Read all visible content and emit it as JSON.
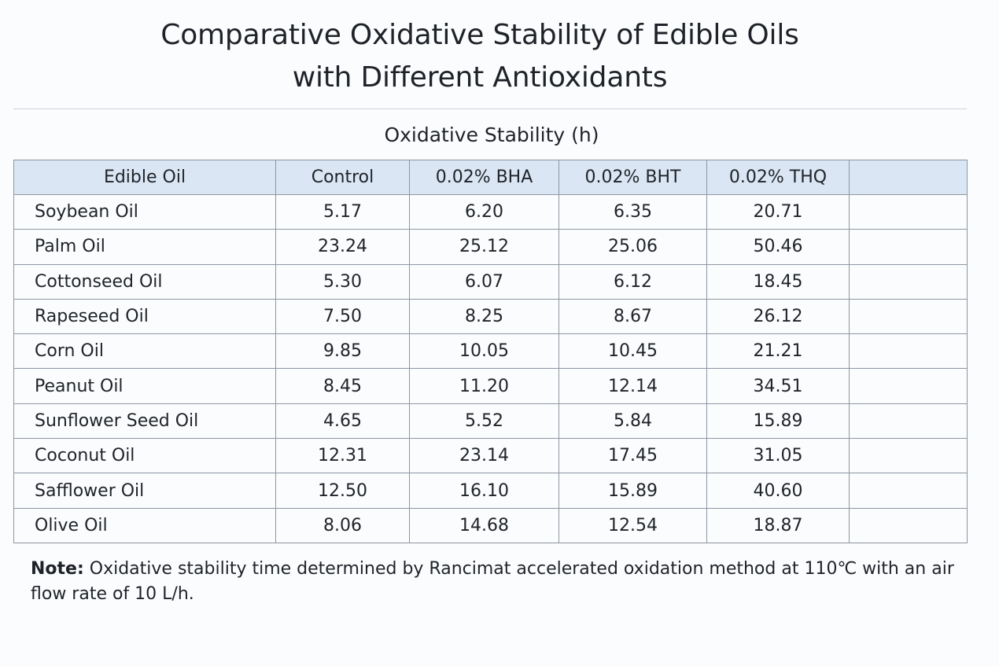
{
  "title_line1": "Comparative Oxidative Stability of Edible Oils",
  "title_line2": "with Different Antioxidants",
  "subtitle": "Oxidative Stability (h)",
  "columns": [
    "Edible Oil",
    "Control",
    "0.02% BHA",
    "0.02% BHT",
    "0.02% THQ",
    ""
  ],
  "rows": [
    [
      "Soybean Oil",
      "5.17",
      "6.20",
      "6.35",
      "20.71",
      ""
    ],
    [
      "Palm Oil",
      "23.24",
      "25.12",
      "25.06",
      "50.46",
      ""
    ],
    [
      "Cottonseed Oil",
      "5.30",
      "6.07",
      "6.12",
      "18.45",
      ""
    ],
    [
      "Rapeseed Oil",
      "7.50",
      "8.25",
      "8.67",
      "26.12",
      ""
    ],
    [
      "Corn Oil",
      "9.85",
      "10.05",
      "10.45",
      "21.21",
      ""
    ],
    [
      "Peanut Oil",
      "8.45",
      "11.20",
      "12.14",
      "34.51",
      ""
    ],
    [
      "Sunflower Seed Oil",
      "4.65",
      "5.52",
      "5.84",
      "15.89",
      ""
    ],
    [
      "Coconut Oil",
      "12.31",
      "23.14",
      "17.45",
      "31.05",
      ""
    ],
    [
      "Safflower Oil",
      "12.50",
      "16.10",
      "15.89",
      "40.60",
      ""
    ],
    [
      "Olive Oil",
      "8.06",
      "14.68",
      "12.54",
      "18.87",
      ""
    ]
  ],
  "note_label": "Note:",
  "note_text": "Oxidative stability time determined by Rancimat accelerated oxidation method at 110℃ with an air flow rate of 10 L/h.",
  "colors": {
    "header_background": "#dae6f4",
    "grid": "#8d96a2",
    "page_background": "#fbfcfd"
  }
}
